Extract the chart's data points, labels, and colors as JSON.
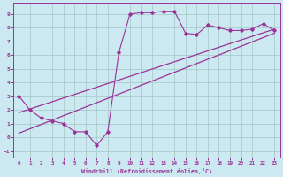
{
  "background_color": "#cce8f0",
  "grid_color": "#aacccc",
  "line_color": "#993399",
  "xlim": [
    -0.5,
    23.5
  ],
  "ylim": [
    -1.5,
    9.8
  ],
  "xticks": [
    0,
    1,
    2,
    3,
    4,
    5,
    6,
    7,
    8,
    9,
    10,
    11,
    12,
    13,
    14,
    15,
    16,
    17,
    18,
    19,
    20,
    21,
    22,
    23
  ],
  "yticks": [
    -1,
    0,
    1,
    2,
    3,
    4,
    5,
    6,
    7,
    8,
    9
  ],
  "xlabel": "Windchill (Refroidissement éolien,°C)",
  "line1_x": [
    0,
    1,
    2,
    3,
    4,
    5,
    6,
    7,
    8,
    9,
    10,
    11,
    12,
    13,
    14,
    15,
    16,
    17,
    18,
    19,
    20,
    21,
    22,
    23
  ],
  "line1_y": [
    3.0,
    2.0,
    1.4,
    1.2,
    1.0,
    0.4,
    0.4,
    -0.6,
    0.4,
    6.2,
    9.0,
    9.1,
    9.1,
    9.2,
    9.2,
    7.6,
    7.5,
    8.2,
    8.0,
    7.8,
    7.8,
    7.9,
    8.3,
    7.8
  ],
  "line2_x": [
    0,
    23
  ],
  "line2_y": [
    0.3,
    7.6
  ],
  "line3_x": [
    0,
    23
  ],
  "line3_y": [
    1.8,
    7.9
  ]
}
